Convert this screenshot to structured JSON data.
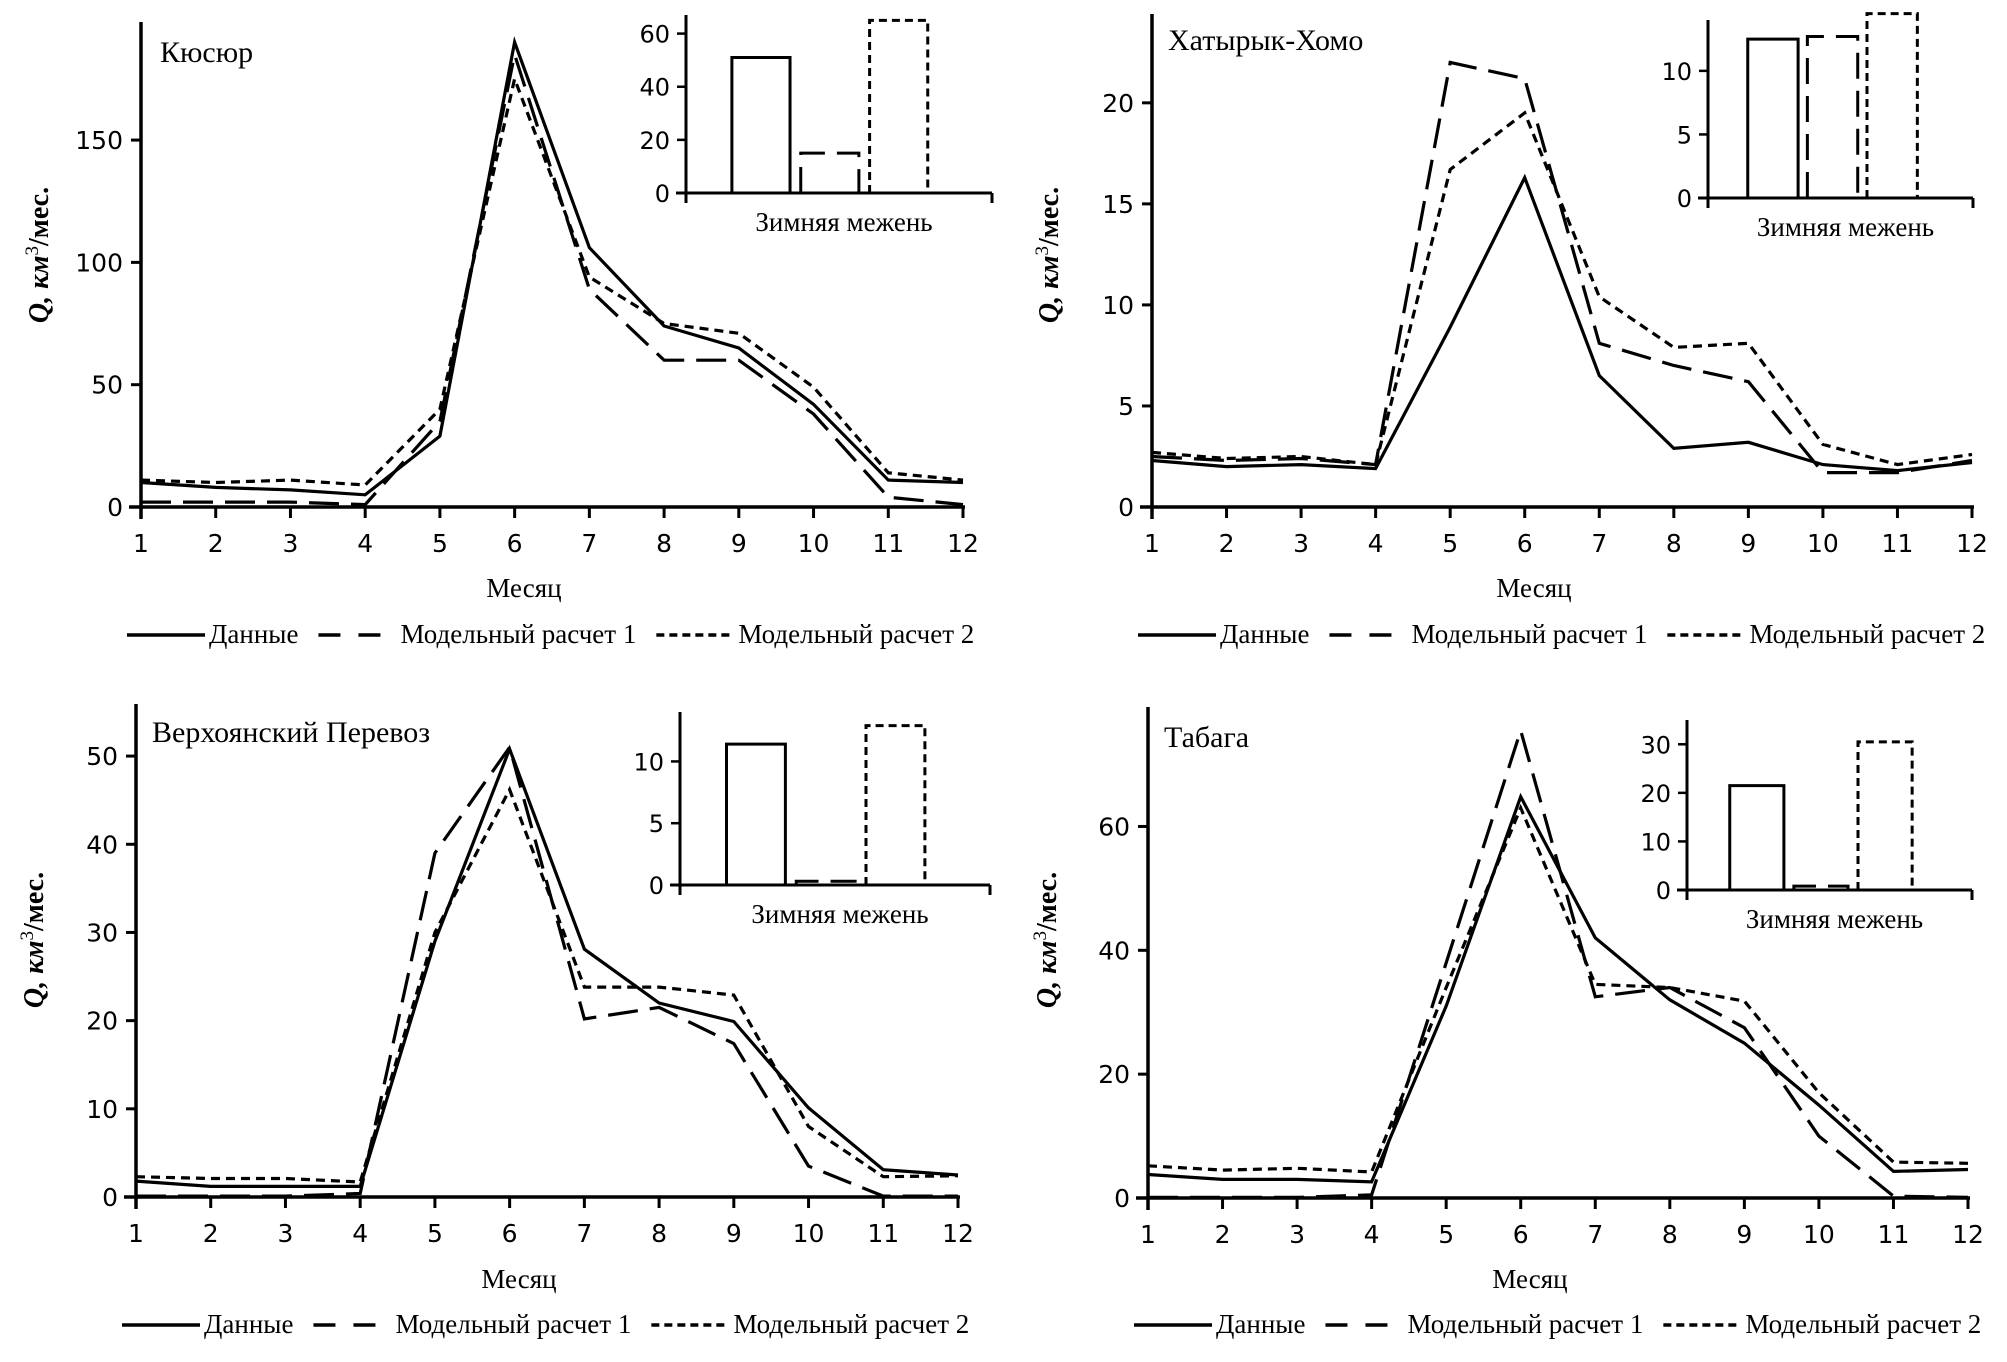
{
  "figure": {
    "line_styles": {
      "Данные": "solid",
      "Модельный расчет 1": "long-dash",
      "Модельный расчет 2": "short-dash"
    },
    "ink_color": "#000000",
    "background_color": "#ffffff"
  },
  "chart_data": [
    {
      "type": "line",
      "title": "Кюсюр",
      "xlabel": "Месяц",
      "ylabel": "Q, км³/мес.",
      "x": [
        1,
        2,
        3,
        4,
        5,
        6,
        7,
        8,
        9,
        10,
        11,
        12
      ],
      "ylim": [
        0,
        195
      ],
      "yticks": [
        0,
        50,
        100,
        150
      ],
      "grid": false,
      "legend": {
        "placement": "bottom",
        "entries": [
          "Данные",
          "Модельный расчет 1",
          "Модельный расчет 2"
        ]
      },
      "series": [
        {
          "name": "Данные",
          "values": [
            10,
            8,
            7,
            5,
            29,
            190,
            106,
            74,
            65,
            42,
            11,
            10
          ]
        },
        {
          "name": "Модельный расчет 1",
          "values": [
            2,
            2,
            2,
            1,
            35,
            185,
            89,
            60,
            60,
            38,
            4,
            1
          ]
        },
        {
          "name": "Модельный расчет 2",
          "values": [
            11,
            10,
            11,
            9,
            40,
            175,
            94,
            75,
            71,
            49,
            14,
            11
          ]
        }
      ],
      "inset": {
        "type": "bar",
        "xlabel": "Зимняя межень",
        "ylim": [
          0,
          67
        ],
        "yticks": [
          0,
          20,
          40,
          60
        ],
        "categories": [
          "Данные",
          "Модельный расчет 1",
          "Модельный расчет 2"
        ],
        "values": [
          51,
          15,
          65
        ]
      }
    },
    {
      "type": "line",
      "title": "Хатырык-Хомо",
      "xlabel": "Месяц",
      "ylabel": "Q, км³/мес.",
      "x": [
        1,
        2,
        3,
        4,
        5,
        6,
        7,
        8,
        9,
        10,
        11,
        12
      ],
      "ylim": [
        0,
        24
      ],
      "yticks": [
        0,
        5,
        10,
        15,
        20
      ],
      "grid": false,
      "legend": {
        "placement": "bottom",
        "entries": [
          "Данные",
          "Модельный расчет 1",
          "Модельный расчет 2"
        ]
      },
      "series": [
        {
          "name": "Данные",
          "values": [
            2.3,
            2.0,
            2.1,
            1.9,
            8.9,
            16.3,
            6.5,
            2.9,
            3.2,
            2.1,
            1.8,
            2.2
          ]
        },
        {
          "name": "Модельный расчет 1",
          "values": [
            2.5,
            2.3,
            2.4,
            2.1,
            22.0,
            21.2,
            8.1,
            7.0,
            6.2,
            1.7,
            1.7,
            2.3
          ]
        },
        {
          "name": "Модельный расчет 2",
          "values": [
            2.7,
            2.4,
            2.5,
            2.1,
            16.7,
            19.5,
            10.4,
            7.9,
            8.1,
            3.1,
            2.1,
            2.6
          ]
        }
      ],
      "inset": {
        "type": "bar",
        "xlabel": "Зимняя межень",
        "ylim": [
          0,
          14
        ],
        "yticks": [
          0,
          5,
          10
        ],
        "categories": [
          "Данные",
          "Модельный расчет 1",
          "Модельный расчет 2"
        ],
        "values": [
          12.5,
          12.7,
          14.5
        ]
      }
    },
    {
      "type": "line",
      "title": "Верхоянский Перевоз",
      "xlabel": "Месяц",
      "ylabel": "Q, км³/мес.",
      "x": [
        1,
        2,
        3,
        4,
        5,
        6,
        7,
        8,
        9,
        10,
        11,
        12
      ],
      "ylim": [
        0,
        55
      ],
      "yticks": [
        0,
        10,
        20,
        30,
        40,
        50
      ],
      "grid": false,
      "legend": {
        "placement": "bottom",
        "entries": [
          "Данные",
          "Модельный расчет 1",
          "Модельный расчет 2"
        ]
      },
      "series": [
        {
          "name": "Данные",
          "values": [
            1.8,
            1.2,
            1.2,
            1.2,
            29,
            50.8,
            28.1,
            22,
            19.9,
            10.1,
            3.1,
            2.5
          ]
        },
        {
          "name": "Модельный расчет 1",
          "values": [
            0.1,
            0.1,
            0.1,
            0.4,
            39,
            51,
            20.2,
            21.5,
            17.4,
            3.5,
            0.1,
            0.1
          ]
        },
        {
          "name": "Модельный расчет 2",
          "values": [
            2.3,
            2.1,
            2.1,
            1.7,
            30,
            46.2,
            23.8,
            23.8,
            22.9,
            8,
            2.3,
            2.4
          ]
        }
      ],
      "inset": {
        "type": "bar",
        "xlabel": "Зимняя межень",
        "ylim": [
          0,
          14
        ],
        "yticks": [
          0,
          5,
          10
        ],
        "categories": [
          "Данные",
          "Модельный расчет 1",
          "Модельный расчет 2"
        ],
        "values": [
          11.4,
          0.3,
          12.9
        ]
      }
    },
    {
      "type": "line",
      "title": "Табага",
      "xlabel": "Месяц",
      "ylabel": "Q, км³/мес.",
      "x": [
        1,
        2,
        3,
        4,
        5,
        6,
        7,
        8,
        9,
        10,
        11,
        12
      ],
      "ylim": [
        0,
        78
      ],
      "yticks": [
        0,
        20,
        40,
        60
      ],
      "grid": false,
      "legend": {
        "placement": "bottom",
        "entries": [
          "Данные",
          "Модельный расчет 1",
          "Модельный расчет 2"
        ]
      },
      "series": [
        {
          "name": "Данные",
          "values": [
            3.8,
            3.0,
            3.0,
            2.6,
            31,
            64.8,
            42,
            32,
            25,
            15,
            4.3,
            4.6
          ]
        },
        {
          "name": "Модельный расчет 1",
          "values": [
            0.1,
            0.1,
            0.1,
            0.5,
            38,
            75.5,
            32.5,
            34,
            27.5,
            10,
            0.3,
            0.1
          ]
        },
        {
          "name": "Модельный расчет 2",
          "values": [
            5.2,
            4.5,
            4.8,
            4.2,
            34,
            63,
            34.5,
            34,
            31.8,
            17,
            5.8,
            5.6
          ]
        }
      ],
      "inset": {
        "type": "bar",
        "xlabel": "Зимняя межень",
        "ylim": [
          0,
          35
        ],
        "yticks": [
          0,
          10,
          20,
          30
        ],
        "categories": [
          "Данные",
          "Модельный расчет 1",
          "Модельный расчет 2"
        ],
        "values": [
          21.5,
          0.8,
          30.5
        ]
      }
    }
  ]
}
